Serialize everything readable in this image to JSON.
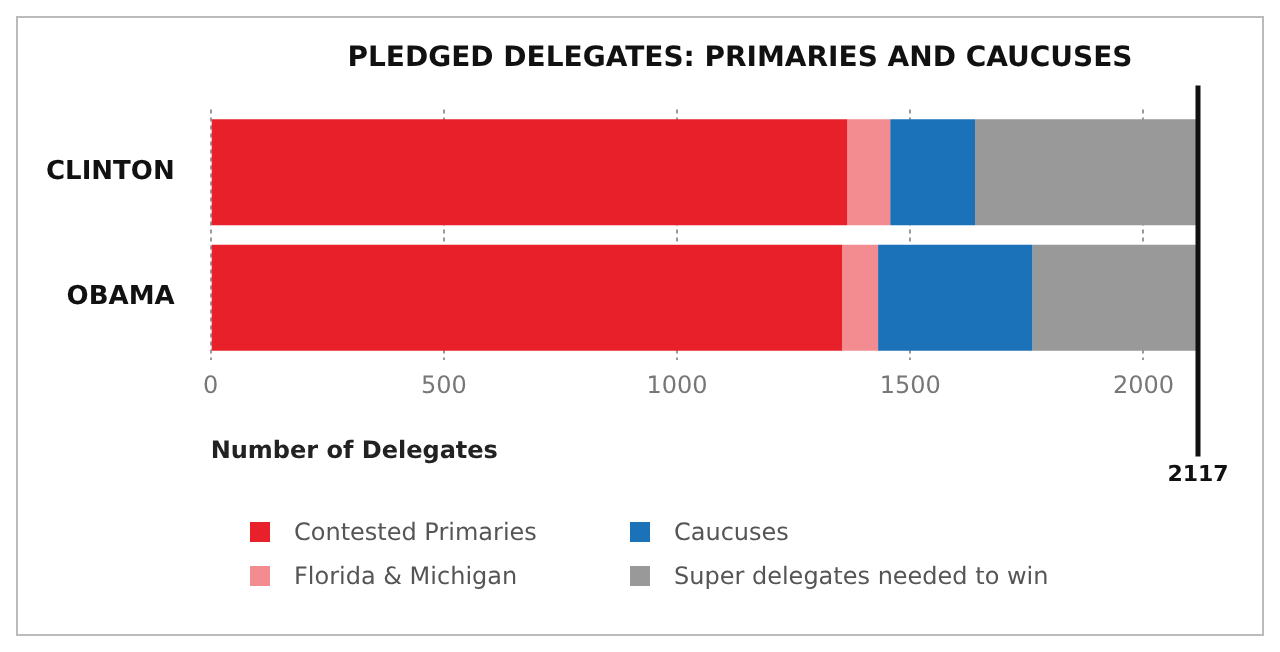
{
  "chart_data": {
    "type": "bar",
    "orientation": "horizontal",
    "stacked": true,
    "title": "PLEDGED DELEGATES: PRIMARIES AND CAUCUSES",
    "xlabel": "Number of Delegates",
    "categories": [
      "CLINTON",
      "OBAMA"
    ],
    "series": [
      {
        "name": "Contested Primaries",
        "color": "#e8202a",
        "values": [
          1365,
          1354
        ]
      },
      {
        "name": "Florida & Michigan",
        "color": "#f28c90",
        "values": [
          92,
          77
        ]
      },
      {
        "name": "Caucuses",
        "color": "#1c72b8",
        "values": [
          182,
          331
        ]
      },
      {
        "name": "Super delegates needed to win",
        "color": "#999999",
        "values": [
          478,
          355
        ]
      }
    ],
    "xlim": [
      0,
      2117
    ],
    "xticks": [
      0,
      500,
      1000,
      1500,
      2000
    ],
    "grid": "x",
    "legend": "bottom",
    "ref_lines": [
      {
        "axis": "x",
        "value": 2117,
        "label": "2117",
        "color": "#111111"
      }
    ]
  }
}
